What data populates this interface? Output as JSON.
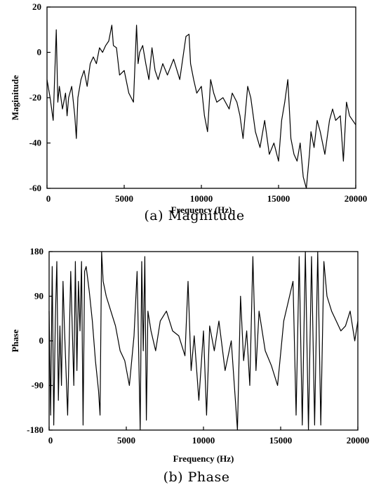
{
  "chart_data": [
    {
      "type": "line",
      "caption": "(a) Magnitude",
      "xlabel": "Frequency (Hz)",
      "ylabel": "Maginitude",
      "xlim": [
        0,
        20000
      ],
      "ylim": [
        -60,
        20
      ],
      "xticks": [
        "0",
        "5000",
        "10000",
        "15000",
        "20000"
      ],
      "yticks": [
        "20",
        "0",
        "-20",
        "-40",
        "-60"
      ],
      "grid": false,
      "series": [
        {
          "x": [
            0,
            200,
            400,
            500,
            600,
            700,
            800,
            1000,
            1200,
            1300,
            1400,
            1600,
            1800,
            1900,
            2000,
            2200,
            2400,
            2600,
            2800,
            3000,
            3200,
            3400,
            3600,
            3800,
            4000,
            4200,
            4300,
            4500,
            4700,
            5000,
            5300,
            5600,
            5800,
            5900,
            6000,
            6200,
            6400,
            6600,
            6800,
            7000,
            7200,
            7500,
            7800,
            8200,
            8600,
            9000,
            9200,
            9300,
            9500,
            9700,
            10000,
            10200,
            10400,
            10600,
            10800,
            11000,
            11400,
            11800,
            12000,
            12300,
            12500,
            12700,
            13000,
            13200,
            13500,
            13800,
            14100,
            14400,
            14700,
            15000,
            15200,
            15400,
            15600,
            15800,
            16000,
            16200,
            16400,
            16600,
            16800,
            17000,
            17100,
            17300,
            17500,
            17700,
            18000,
            18300,
            18500,
            18700,
            19000,
            19200,
            19400,
            19600,
            19800,
            20000
          ],
          "values": [
            -12,
            -20,
            -30,
            -10,
            10,
            -22,
            -15,
            -25,
            -18,
            -28,
            -20,
            -15,
            -28,
            -38,
            -20,
            -12,
            -8,
            -15,
            -5,
            -2,
            -5,
            2,
            0,
            3,
            5,
            12,
            3,
            2,
            -10,
            -8,
            -18,
            -22,
            12,
            -5,
            0,
            3,
            -5,
            -12,
            2,
            -8,
            -12,
            -5,
            -10,
            -3,
            -12,
            7,
            8,
            -5,
            -12,
            -18,
            -15,
            -28,
            -35,
            -12,
            -18,
            -22,
            -20,
            -25,
            -18,
            -22,
            -28,
            -38,
            -15,
            -20,
            -35,
            -42,
            -30,
            -45,
            -40,
            -48,
            -30,
            -22,
            -12,
            -38,
            -45,
            -48,
            -40,
            -55,
            -60,
            -45,
            -35,
            -42,
            -30,
            -35,
            -45,
            -30,
            -25,
            -30,
            -28,
            -48,
            -22,
            -28,
            -30,
            -32
          ]
        }
      ]
    },
    {
      "type": "line",
      "caption": "(b) Phase",
      "xlabel": "Frequency (Hz)",
      "ylabel": "Phase",
      "xlim": [
        0,
        20000
      ],
      "ylim": [
        -180,
        180
      ],
      "xticks": [
        "0",
        "5000",
        "10000",
        "15000",
        "20000"
      ],
      "yticks": [
        "180",
        "90",
        "0",
        "-90",
        "-180"
      ],
      "grid": false,
      "series": [
        {
          "x": [
            0,
            100,
            200,
            300,
            400,
            500,
            600,
            700,
            800,
            900,
            1000,
            1200,
            1400,
            1600,
            1700,
            1800,
            1900,
            2000,
            2100,
            2200,
            2300,
            2400,
            2600,
            2800,
            3000,
            3200,
            3300,
            3400,
            3500,
            3700,
            4000,
            4300,
            4600,
            4900,
            5200,
            5500,
            5700,
            5900,
            6000,
            6100,
            6200,
            6300,
            6400,
            6600,
            6900,
            7200,
            7600,
            8000,
            8400,
            8800,
            9000,
            9200,
            9400,
            9700,
            10000,
            10200,
            10400,
            10700,
            11000,
            11400,
            11800,
            12200,
            12400,
            12600,
            12800,
            13000,
            13200,
            13400,
            13600,
            14000,
            14400,
            14800,
            15200,
            15500,
            15800,
            16000,
            16200,
            16400,
            16600,
            16800,
            17000,
            17200,
            17400,
            17600,
            17800,
            18000,
            18300,
            18600,
            18900,
            19200,
            19500,
            19800,
            20000
          ],
          "values": [
            60,
            -150,
            150,
            -170,
            40,
            160,
            -120,
            30,
            -90,
            120,
            20,
            -150,
            140,
            -90,
            160,
            -60,
            120,
            20,
            160,
            -170,
            140,
            150,
            100,
            40,
            -40,
            -100,
            -150,
            180,
            120,
            90,
            60,
            30,
            -20,
            -40,
            -90,
            10,
            140,
            -180,
            160,
            -20,
            170,
            -160,
            60,
            20,
            -20,
            40,
            60,
            20,
            10,
            -30,
            120,
            -60,
            10,
            -120,
            20,
            -150,
            30,
            -20,
            40,
            -60,
            0,
            -180,
            90,
            -40,
            20,
            -90,
            170,
            -60,
            60,
            -20,
            -50,
            -90,
            40,
            80,
            120,
            -150,
            170,
            -170,
            180,
            -180,
            170,
            -170,
            180,
            -170,
            160,
            90,
            60,
            40,
            20,
            30,
            60,
            0,
            40
          ]
        }
      ]
    }
  ]
}
